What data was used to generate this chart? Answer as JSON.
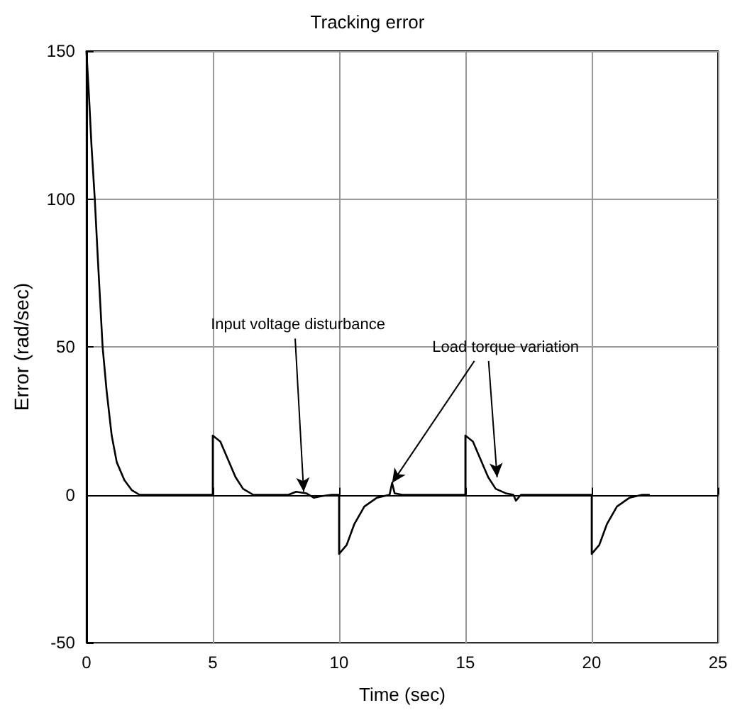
{
  "chart_data": {
    "type": "line",
    "title": "Tracking error",
    "xlabel": "Time (sec)",
    "ylabel": "Error (rad/sec)",
    "x": [
      0,
      0.1,
      0.2,
      0.33,
      0.45,
      0.64,
      0.8,
      1.0,
      1.2,
      1.5,
      1.8,
      2.1,
      5,
      5,
      5.3,
      5.6,
      5.9,
      6.2,
      6.6,
      8,
      8.3,
      8.7,
      9,
      9.3,
      9.7,
      10,
      10,
      10.3,
      10.6,
      11,
      11.5,
      12,
      12.1,
      12.2,
      12.5,
      15,
      15,
      15.3,
      15.6,
      15.9,
      16.2,
      16.6,
      16.9,
      17,
      17.2,
      20,
      20,
      20.3,
      20.6,
      21,
      21.5,
      22,
      22.3
    ],
    "series": [
      {
        "color": "#000000",
        "values": [
          150,
          135,
          118,
          100,
          80,
          50,
          35,
          20,
          11,
          5,
          1.5,
          0,
          0,
          20,
          18,
          12,
          6,
          2,
          0,
          0,
          1,
          0.5,
          -1,
          -0.5,
          0,
          0,
          -20,
          -17,
          -10,
          -4,
          -1,
          0,
          4,
          0.5,
          0,
          0,
          20,
          18,
          12,
          6,
          2,
          0.5,
          0,
          -2,
          0,
          0,
          -20,
          -17,
          -10,
          -4,
          -1,
          0,
          0
        ]
      }
    ],
    "xlim": [
      0,
      25
    ],
    "xticks": [
      0,
      5,
      10,
      15,
      20,
      25
    ],
    "ylim": [
      -50,
      150
    ],
    "yticks": [
      -50,
      0,
      50,
      100,
      150
    ],
    "grid": true,
    "marker": "none",
    "line_style": "solid",
    "annotations": [
      {
        "text": "Input voltage disturbance",
        "x": 8.6,
        "y": 1
      },
      {
        "text": "Load torque variation",
        "x": 12.1,
        "y": 4
      }
    ]
  }
}
